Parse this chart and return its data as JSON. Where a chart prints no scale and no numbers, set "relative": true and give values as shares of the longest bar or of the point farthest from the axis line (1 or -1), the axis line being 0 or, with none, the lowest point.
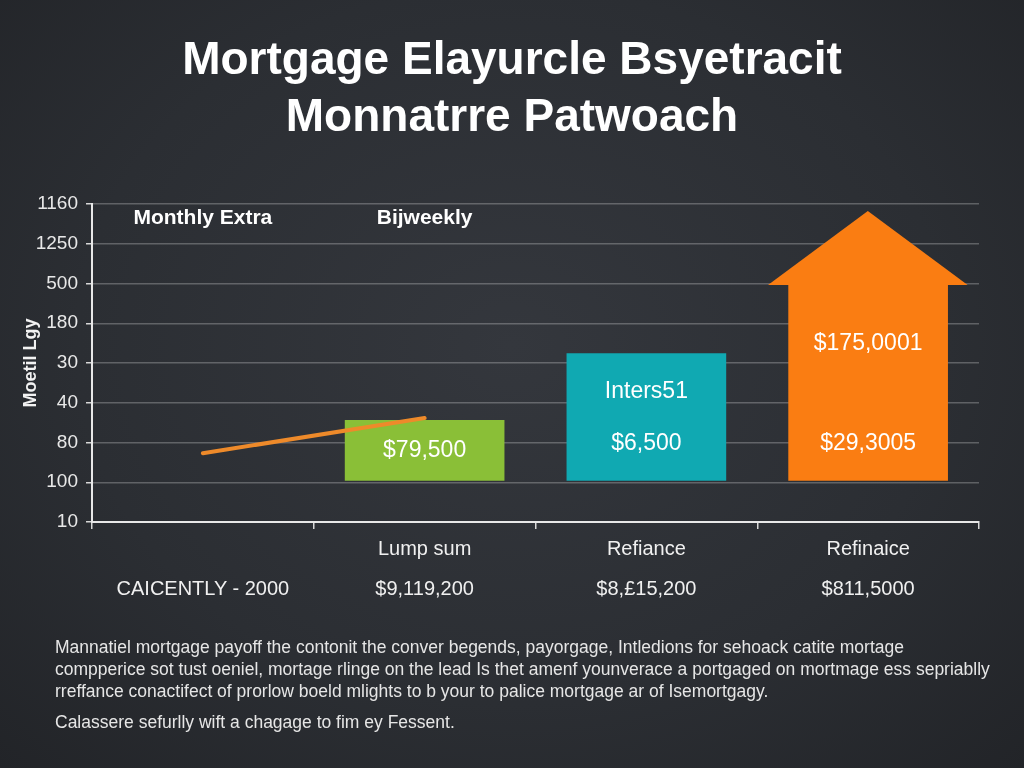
{
  "chart_data": {
    "type": "bar",
    "title": "Mortgage Elayurcle Bsyetracit Monnatrre Patwoach",
    "ylabel": "Moetil Lgy",
    "relative": true,
    "categories": [
      "\nCAICENTLY - 2000",
      "Lump sum\n$9,119,200",
      "Refiance\n$8,£15,200",
      "Refinaice\n$811,5000"
    ],
    "y_categories": [
      "1160",
      "1250",
      "500",
      "180",
      "30",
      "40",
      "80",
      "100",
      "10"
    ],
    "series": [
      {
        "values": [
          null,
          0.31,
          0.65,
          1
        ],
        "colors": [
          null,
          "#8abf37",
          "#10a9b2",
          "#fa7d12"
        ]
      },
      {
        "type": "line",
        "color": "#ee8a2a",
        "values": [
          0.14,
          0.32,
          null,
          null
        ]
      }
    ],
    "grid": "y",
    "line_style": "solid",
    "annotations": [
      "Monthly Extra",
      "Bijweekly",
      "$79,500",
      "Inters51",
      "$6,500",
      "$175,0001",
      "$29,3005",
      "Mannatiel mortgage payoff the contonit the conver begends, payorgage, Intledions for sehoack catite mortage compperice sot tust oeniel, mortage rlinge on the  lead Is thet amenf younverace a portgaged on mortmage ess sepriablly rreffance conactifect of prorlow boeld mlights to b your to palice mortgage ar of Isemortgagy.",
      "Calassere sefurlly wift a chagage to fim ey Fessent."
    ]
  }
}
